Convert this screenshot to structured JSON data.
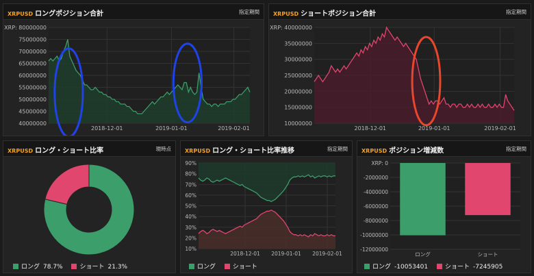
{
  "colors": {
    "long": "#3c9e6b",
    "short": "#e0466e",
    "long_fill": "#1e3d2c",
    "short_fill": "#4a1c2b",
    "circle_blue": "#1f43e8",
    "circle_red": "#e8472c"
  },
  "panels": {
    "long_total": {
      "symbol": "XRPUSD",
      "title": "ロングポジション合計",
      "right_label": "指定期間"
    },
    "short_total": {
      "symbol": "XRPUSD",
      "title": "ショートポジション合計",
      "right_label": "指定期間"
    },
    "ratio": {
      "symbol": "XRPUSD",
      "title": "ロング・ショート比率",
      "right_label": "現時点"
    },
    "ratio_trend": {
      "symbol": "XRPUSD",
      "title": "ロング・ショート比率推移",
      "right_label": "指定期間"
    },
    "position_change": {
      "symbol": "XRPUSD",
      "title": "ポジション増減数",
      "right_label": "指定期間"
    }
  },
  "legends": {
    "ratio": [
      {
        "label": "ロング",
        "value": "78.7%"
      },
      {
        "label": "ショート",
        "value": "21.3%"
      }
    ],
    "ratio_trend": [
      {
        "label": "ロング"
      },
      {
        "label": "ショート"
      }
    ],
    "position_change": [
      {
        "label": "ロング",
        "value": "-10053401"
      },
      {
        "label": "ショート",
        "value": "-7245905"
      }
    ]
  },
  "chart_data": [
    {
      "id": "long_total",
      "type": "area",
      "xlabel": "",
      "ylabel": "XRP:",
      "ylim": [
        40000000,
        80000000
      ],
      "yticks": [
        "40000000",
        "45000000",
        "50000000",
        "55000000",
        "60000000",
        "65000000",
        "70000000",
        "75000000",
        "80000000"
      ],
      "xticks": [
        {
          "pos": 0.29,
          "label": "2018-12-01"
        },
        {
          "pos": 0.61,
          "label": "2019-01-01"
        },
        {
          "pos": 0.92,
          "label": "2019-02-01"
        }
      ],
      "series": [
        {
          "values": [
            66,
            67,
            66,
            67,
            68,
            66,
            67,
            70,
            72,
            75,
            68,
            66,
            64,
            62,
            61,
            60,
            58,
            56,
            56,
            55,
            54,
            54,
            55,
            54,
            53,
            53,
            52,
            52,
            51,
            51,
            50,
            50,
            49,
            49,
            48,
            48,
            48,
            47,
            47,
            46,
            45,
            45,
            44,
            44,
            44,
            45,
            46,
            47,
            48,
            49,
            48,
            49,
            50,
            51,
            51,
            52,
            53,
            52,
            53,
            54,
            55,
            56,
            55,
            54,
            57,
            57,
            53,
            55,
            53,
            52,
            53,
            61,
            55,
            50,
            49,
            48,
            48,
            47,
            48,
            48,
            47,
            48,
            48,
            48,
            49,
            49,
            49,
            50,
            50,
            51,
            52,
            52,
            53,
            54,
            55,
            53
          ]
        }
      ],
      "annotations": [
        {
          "shape": "ellipse",
          "color": "blue",
          "cx": 0.1,
          "cy": 0.68,
          "rx": 0.07,
          "ry": 0.46
        },
        {
          "shape": "ellipse",
          "color": "blue",
          "cx": 0.69,
          "cy": 0.58,
          "rx": 0.07,
          "ry": 0.41
        }
      ]
    },
    {
      "id": "short_total",
      "type": "area",
      "xlabel": "",
      "ylabel": "XRP:",
      "ylim": [
        10000000,
        40000000
      ],
      "yticks": [
        "10000000",
        "15000000",
        "20000000",
        "25000000",
        "30000000",
        "35000000",
        "40000000"
      ],
      "xticks": [
        {
          "pos": 0.28,
          "label": "2018-12-01"
        },
        {
          "pos": 0.6,
          "label": "2019-01-01"
        },
        {
          "pos": 0.93,
          "label": "2019-02-01"
        }
      ],
      "series": [
        {
          "values": [
            23,
            24,
            25,
            24,
            23,
            24,
            25,
            26,
            28,
            27,
            26,
            27,
            26,
            27,
            28,
            27,
            28,
            29,
            30,
            31,
            32,
            31,
            33,
            32,
            34,
            33,
            35,
            34,
            36,
            35,
            37,
            36,
            38,
            37,
            40,
            39,
            38,
            37,
            36,
            37,
            36,
            35,
            34,
            35,
            34,
            33,
            32,
            31,
            30,
            27,
            24,
            22,
            20,
            18,
            16,
            17,
            16,
            17,
            17,
            16,
            17,
            18,
            16,
            16,
            15,
            16,
            16,
            15,
            16,
            16,
            15,
            15,
            16,
            15,
            16,
            15,
            15,
            16,
            15,
            16,
            15,
            15,
            16,
            15,
            15,
            16,
            15,
            16,
            15,
            15,
            19,
            17,
            16,
            15,
            14
          ]
        }
      ],
      "annotations": [
        {
          "shape": "ellipse",
          "color": "red",
          "cx": 0.56,
          "cy": 0.56,
          "rx": 0.07,
          "ry": 0.46
        }
      ]
    },
    {
      "id": "ratio",
      "type": "pie",
      "series": [
        {
          "name": "ロング",
          "value": 78.7
        },
        {
          "name": "ショート",
          "value": 21.3
        }
      ]
    },
    {
      "id": "ratio_trend",
      "type": "area",
      "xlabel": "",
      "ylabel": "",
      "ylim": [
        10,
        90
      ],
      "yticks": [
        "10%",
        "20%",
        "30%",
        "40%",
        "50%",
        "60%",
        "70%",
        "80%",
        "90%"
      ],
      "xticks": [
        {
          "pos": 0.34,
          "label": "2018-12-01"
        },
        {
          "pos": 0.64,
          "label": "2019-01-01"
        },
        {
          "pos": 0.94,
          "label": "2019-02-01"
        }
      ],
      "series": [
        {
          "name": "ロング",
          "values": [
            76,
            74,
            73,
            74,
            76,
            75,
            73,
            72,
            73,
            74,
            73,
            74,
            75,
            76,
            75,
            74,
            73,
            72,
            71,
            70,
            69,
            70,
            68,
            67,
            66,
            65,
            64,
            63,
            62,
            60,
            58,
            57,
            56,
            55,
            55,
            54,
            55,
            56,
            58,
            60,
            62,
            64,
            67,
            70,
            74,
            76,
            77,
            77,
            78,
            77,
            78,
            77,
            78,
            79,
            77,
            78,
            76,
            77,
            78,
            77,
            78,
            78,
            77,
            78,
            77,
            78,
            78
          ]
        },
        {
          "name": "ショート",
          "values": [
            24,
            26,
            27,
            26,
            24,
            25,
            27,
            28,
            27,
            26,
            27,
            26,
            25,
            24,
            25,
            26,
            27,
            28,
            29,
            30,
            31,
            30,
            32,
            33,
            34,
            35,
            36,
            37,
            38,
            40,
            42,
            43,
            44,
            45,
            45,
            46,
            45,
            44,
            42,
            40,
            38,
            36,
            33,
            30,
            26,
            24,
            23,
            23,
            22,
            23,
            22,
            23,
            22,
            21,
            23,
            22,
            24,
            23,
            22,
            23,
            22,
            22,
            23,
            22,
            23,
            22,
            22
          ]
        }
      ]
    },
    {
      "id": "position_change",
      "type": "bar",
      "xlabel": "",
      "ylabel": "XRP:",
      "ylim": [
        -12000000,
        0
      ],
      "yticks": [
        "0",
        "-2000000",
        "-4000000",
        "-6000000",
        "-8000000",
        "-10000000",
        "-12000000"
      ],
      "categories": [
        "ロング",
        "ショート"
      ],
      "values": [
        -10053401,
        -7245905
      ]
    }
  ]
}
